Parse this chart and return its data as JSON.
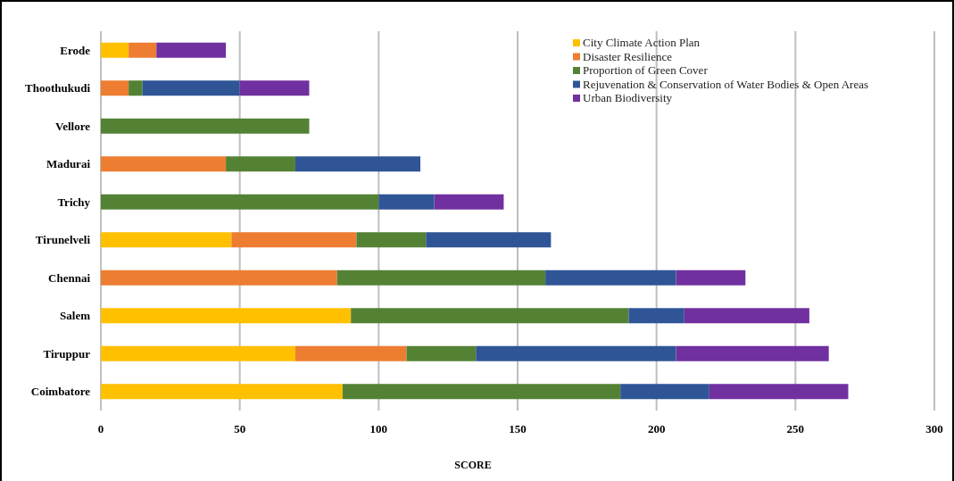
{
  "chart_data": {
    "type": "bar",
    "orientation": "horizontal",
    "stacked": true,
    "xlabel": "SCORE",
    "categories": [
      "Erode",
      "Thoothukudi",
      "Vellore",
      "Madurai",
      "Trichy",
      "Tirunelveli",
      "Chennai",
      "Salem",
      "Tiruppur",
      "Coimbatore"
    ],
    "series": [
      {
        "name": "City Climate Action Plan",
        "color": "#ffc000",
        "values": [
          10,
          0,
          0,
          0,
          0,
          47,
          0,
          90,
          70,
          87
        ]
      },
      {
        "name": "Disaster Resilience",
        "color": "#ed7d31",
        "values": [
          10,
          10,
          0,
          45,
          0,
          45,
          85,
          0,
          40,
          0
        ]
      },
      {
        "name": "Proportion of Green Cover",
        "color": "#548235",
        "values": [
          0,
          5,
          75,
          25,
          100,
          25,
          75,
          100,
          25,
          100
        ]
      },
      {
        "name": "Rejuvenation & Conservation of Water Bodies & Open Areas",
        "color": "#2f5597",
        "values": [
          0,
          35,
          0,
          45,
          20,
          45,
          47,
          20,
          72,
          32
        ]
      },
      {
        "name": "Urban Biodiversity",
        "color": "#7030a0",
        "values": [
          25,
          25,
          0,
          0,
          25,
          0,
          25,
          45,
          55,
          50
        ]
      }
    ],
    "xlim": [
      0,
      300
    ],
    "xticks": [
      0,
      50,
      100,
      150,
      200,
      250,
      300
    ],
    "grid": "x",
    "legend": "top right"
  }
}
